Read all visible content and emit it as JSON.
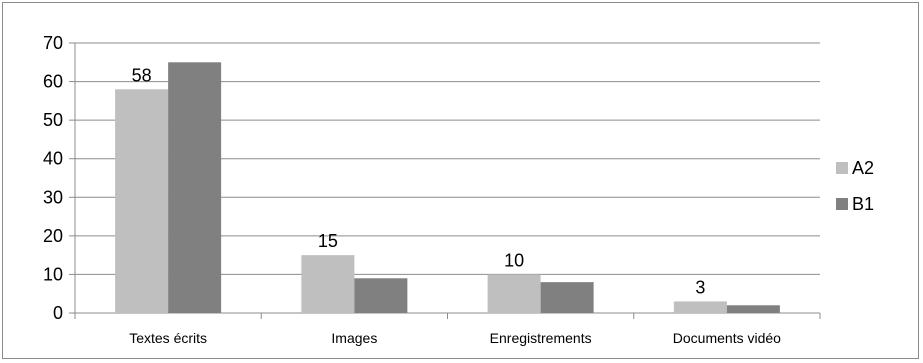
{
  "chart_data": {
    "type": "bar",
    "categories": [
      "Textes écrits",
      "Images",
      "Enregistrements",
      "Documents vidéo"
    ],
    "series": [
      {
        "name": "A2",
        "values": [
          58,
          15,
          10,
          3
        ],
        "color": "#bfbfbf"
      },
      {
        "name": "B1",
        "values": [
          65,
          9,
          8,
          2
        ],
        "color": "#808080"
      }
    ],
    "data_labels": {
      "series": "A2",
      "values": [
        "58",
        "15",
        "10",
        "3"
      ]
    },
    "ylim": [
      0,
      70
    ],
    "yticks": [
      0,
      10,
      20,
      30,
      40,
      50,
      60,
      70
    ],
    "grid": true,
    "legend_position": "right",
    "title": "",
    "xlabel": "",
    "ylabel": ""
  }
}
